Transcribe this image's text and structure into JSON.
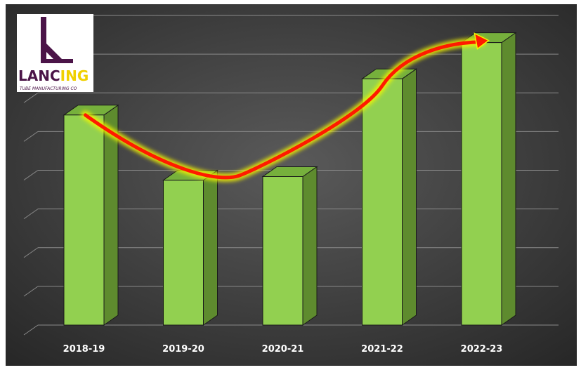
{
  "colors": {
    "background_dark": "#262626",
    "background_light": "#5a5a5a",
    "bar_front": "#92d050",
    "bar_side": "#5e8b2e",
    "bar_top": "#76b03c",
    "trend_arrow": "#ff1a00",
    "trend_glow": "#f5f500",
    "logo_purple": "#4b1448",
    "logo_yellow": "#f0d000"
  },
  "logo": {
    "brand_main": "LANC",
    "brand_accent": "ING",
    "tagline": "TUBE MANUFACTURING CO"
  },
  "chart_data": {
    "type": "bar",
    "style": "3d-column",
    "categories": [
      "2018-19",
      "2019-20",
      "2020-21",
      "2021-22",
      "2022-23"
    ],
    "values": [
      5.8,
      4.0,
      4.1,
      6.8,
      7.8
    ],
    "ylim": [
      0,
      8.2
    ],
    "axis_labels_visible": false,
    "grid": true,
    "legend": "none",
    "annotation": "upward trend arrow over bars"
  }
}
